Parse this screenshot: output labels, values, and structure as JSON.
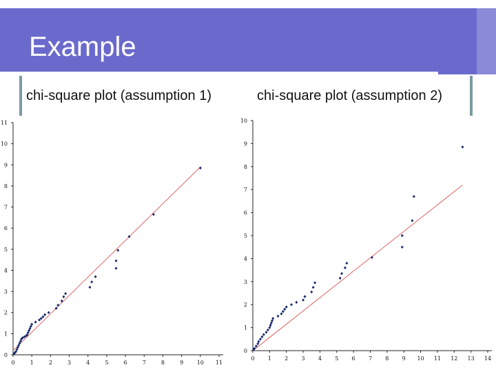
{
  "slide": {
    "title": "Example",
    "caption_left": "chi-square plot (assumption 1)",
    "caption_right": "chi-square plot (assumption 2)",
    "colors": {
      "title_bar": "#6a6acd",
      "points": "#1a2a6e",
      "fit_line": "#e04040"
    }
  },
  "chart_data": [
    {
      "type": "scatter",
      "title": "",
      "xlabel": "",
      "ylabel": "",
      "xlim": [
        0,
        11
      ],
      "ylim": [
        0,
        11
      ],
      "x_ticks": [
        "0",
        "1",
        "2",
        "3",
        "4",
        "5",
        "6",
        "7",
        "8",
        "9",
        "10",
        "11"
      ],
      "y_ticks": [
        "0",
        "1",
        "2",
        "3",
        "4",
        "5",
        "6",
        "7",
        "8",
        "9",
        "10",
        "11"
      ],
      "reference_line": [
        [
          0,
          0.2
        ],
        [
          10,
          8.9
        ]
      ],
      "points": [
        [
          0.05,
          0.05
        ],
        [
          0.1,
          0.1
        ],
        [
          0.15,
          0.15
        ],
        [
          0.2,
          0.25
        ],
        [
          0.25,
          0.35
        ],
        [
          0.3,
          0.45
        ],
        [
          0.35,
          0.55
        ],
        [
          0.4,
          0.65
        ],
        [
          0.45,
          0.75
        ],
        [
          0.5,
          0.8
        ],
        [
          0.6,
          0.85
        ],
        [
          0.7,
          0.9
        ],
        [
          0.75,
          0.95
        ],
        [
          0.8,
          1.05
        ],
        [
          0.85,
          1.15
        ],
        [
          0.9,
          1.25
        ],
        [
          0.95,
          1.35
        ],
        [
          1.0,
          1.45
        ],
        [
          1.2,
          1.55
        ],
        [
          1.4,
          1.65
        ],
        [
          1.5,
          1.72
        ],
        [
          1.6,
          1.8
        ],
        [
          1.7,
          1.9
        ],
        [
          1.9,
          2.0
        ],
        [
          2.3,
          2.2
        ],
        [
          2.4,
          2.35
        ],
        [
          2.6,
          2.55
        ],
        [
          2.7,
          2.75
        ],
        [
          2.8,
          2.9
        ],
        [
          4.1,
          3.2
        ],
        [
          4.2,
          3.45
        ],
        [
          4.4,
          3.7
        ],
        [
          5.5,
          4.1
        ],
        [
          5.5,
          4.45
        ],
        [
          5.6,
          4.95
        ],
        [
          6.2,
          5.6
        ],
        [
          7.5,
          6.65
        ],
        [
          10.0,
          8.85
        ]
      ]
    },
    {
      "type": "scatter",
      "title": "",
      "xlabel": "",
      "ylabel": "",
      "xlim": [
        0,
        14
      ],
      "ylim": [
        0,
        10
      ],
      "x_ticks": [
        "0",
        "1",
        "2",
        "3",
        "4",
        "5",
        "6",
        "7",
        "8",
        "9",
        "10",
        "11",
        "12",
        "13",
        "14"
      ],
      "y_ticks": [
        "0",
        "1",
        "2",
        "3",
        "4",
        "5",
        "6",
        "7",
        "8",
        "9",
        "10"
      ],
      "reference_line": [
        [
          0,
          0
        ],
        [
          12.5,
          7.2
        ]
      ],
      "points": [
        [
          0.05,
          0.05
        ],
        [
          0.1,
          0.1
        ],
        [
          0.2,
          0.2
        ],
        [
          0.3,
          0.3
        ],
        [
          0.35,
          0.4
        ],
        [
          0.45,
          0.5
        ],
        [
          0.55,
          0.6
        ],
        [
          0.65,
          0.7
        ],
        [
          0.8,
          0.8
        ],
        [
          0.9,
          0.9
        ],
        [
          1.0,
          1.0
        ],
        [
          1.05,
          1.1
        ],
        [
          1.1,
          1.2
        ],
        [
          1.15,
          1.3
        ],
        [
          1.2,
          1.4
        ],
        [
          1.5,
          1.5
        ],
        [
          1.7,
          1.6
        ],
        [
          1.8,
          1.7
        ],
        [
          1.9,
          1.8
        ],
        [
          2.0,
          1.9
        ],
        [
          2.3,
          2.0
        ],
        [
          2.6,
          2.1
        ],
        [
          3.0,
          2.2
        ],
        [
          3.1,
          2.35
        ],
        [
          3.5,
          2.55
        ],
        [
          3.6,
          2.75
        ],
        [
          3.7,
          2.95
        ],
        [
          5.2,
          3.15
        ],
        [
          5.3,
          3.35
        ],
        [
          5.5,
          3.6
        ],
        [
          5.6,
          3.8
        ],
        [
          7.1,
          4.05
        ],
        [
          8.9,
          4.5
        ],
        [
          8.9,
          5.0
        ],
        [
          9.5,
          5.65
        ],
        [
          9.6,
          6.7
        ],
        [
          12.5,
          8.85
        ]
      ]
    }
  ]
}
